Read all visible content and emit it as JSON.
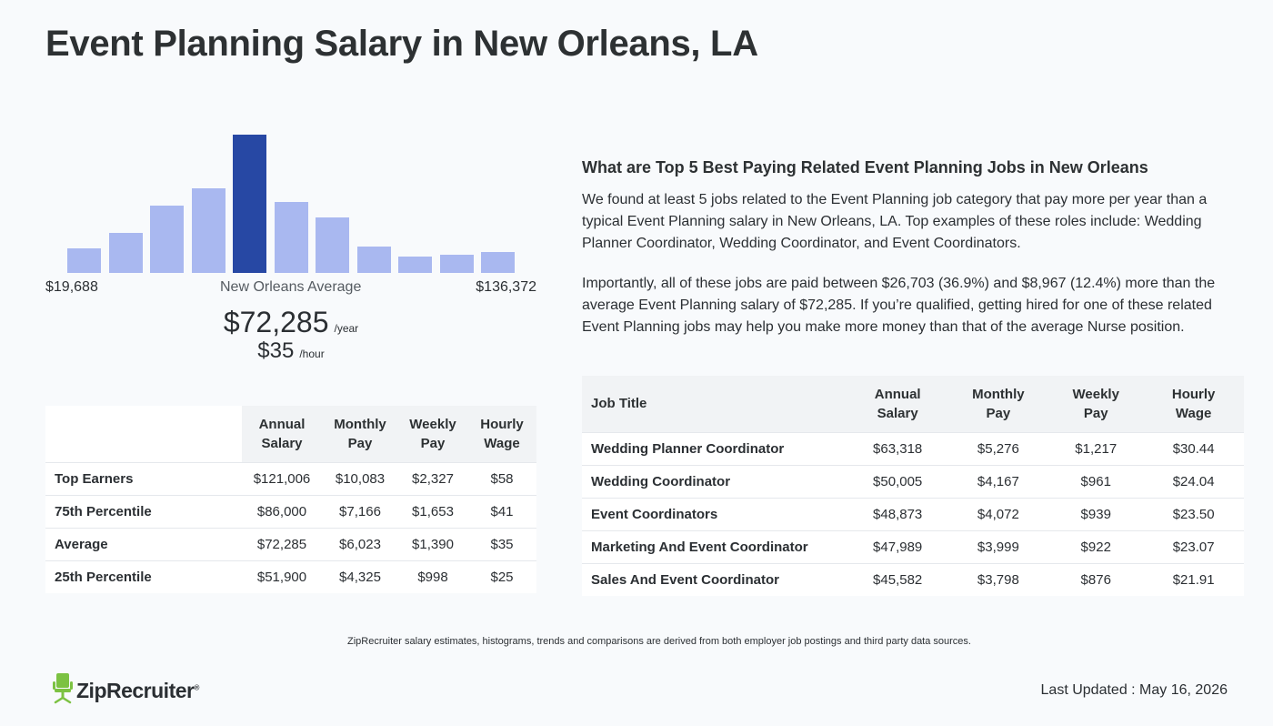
{
  "page_title": "Event Planning Salary in New Orleans, LA",
  "histogram": {
    "bars": [
      0.18,
      0.29,
      0.49,
      0.61,
      1.0,
      0.51,
      0.4,
      0.19,
      0.12,
      0.13,
      0.15
    ],
    "highlight_index": 4,
    "color": "#a9b8f0",
    "highlight_color": "#2748a4",
    "min_label": "$19,688",
    "mid_label": "New Orleans Average",
    "max_label": "$136,372"
  },
  "average": {
    "annual": "$72,285",
    "annual_unit": "/year",
    "hourly": "$35",
    "hourly_unit": "/hour"
  },
  "percentile_table": {
    "headers": [
      "Annual Salary",
      "Monthly Pay",
      "Weekly Pay",
      "Hourly Wage"
    ],
    "rows": [
      {
        "label": "Top Earners",
        "values": [
          "$121,006",
          "$10,083",
          "$2,327",
          "$58"
        ]
      },
      {
        "label": "75th Percentile",
        "values": [
          "$86,000",
          "$7,166",
          "$1,653",
          "$41"
        ]
      },
      {
        "label": "Average",
        "values": [
          "$72,285",
          "$6,023",
          "$1,390",
          "$35"
        ]
      },
      {
        "label": "25th Percentile",
        "values": [
          "$51,900",
          "$4,325",
          "$998",
          "$25"
        ]
      }
    ]
  },
  "related": {
    "heading": "What are Top 5 Best Paying Related Event Planning Jobs in New Orleans",
    "paragraph1": "We found at least 5 jobs related to the Event Planning job category that pay more per year than a typical Event Planning salary in New Orleans, LA. Top examples of these roles include: Wedding Planner Coordinator, Wedding Coordinator, and Event Coordinators.",
    "paragraph2": "Importantly, all of these jobs are paid between $26,703 (36.9%) and $8,967 (12.4%) more than the average Event Planning salary of $72,285. If you’re qualified, getting hired for one of these related Event Planning jobs may help you make more money than that of the average Nurse position."
  },
  "jobs_table": {
    "headers": [
      "Job Title",
      "Annual Salary",
      "Monthly Pay",
      "Weekly Pay",
      "Hourly Wage"
    ],
    "rows": [
      {
        "label": "Wedding Planner Coordinator",
        "values": [
          "$63,318",
          "$5,276",
          "$1,217",
          "$30.44"
        ]
      },
      {
        "label": "Wedding Coordinator",
        "values": [
          "$50,005",
          "$4,167",
          "$961",
          "$24.04"
        ]
      },
      {
        "label": "Event Coordinators",
        "values": [
          "$48,873",
          "$4,072",
          "$939",
          "$23.50"
        ]
      },
      {
        "label": "Marketing And Event Coordinator",
        "values": [
          "$47,989",
          "$3,999",
          "$922",
          "$23.07"
        ]
      },
      {
        "label": "Sales And Event Coordinator",
        "values": [
          "$45,582",
          "$3,798",
          "$876",
          "$21.91"
        ]
      }
    ]
  },
  "footer": {
    "disclaimer": "ZipRecruiter salary estimates, histograms, trends and comparisons are derived from both employer job postings and third party data sources.",
    "logo_text": "ZipRecruiter",
    "logo_icon": "chair-icon",
    "logo_color": "#7cc242",
    "updated": "Last Updated : May 16, 2026"
  }
}
